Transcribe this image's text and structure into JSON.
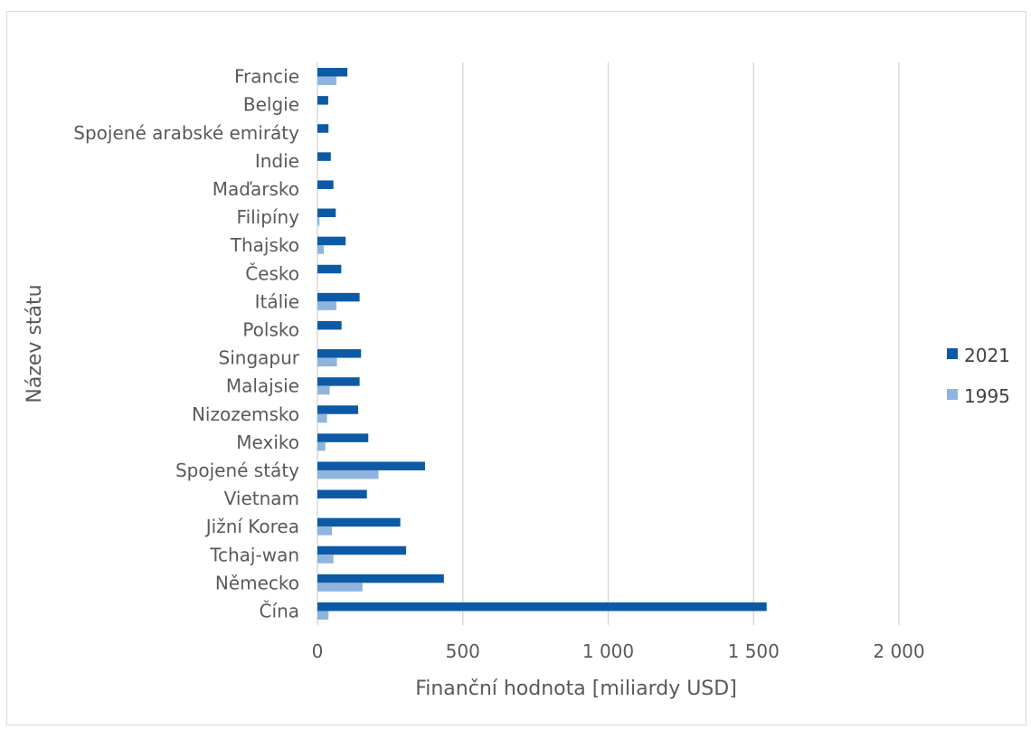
{
  "chart_data": {
    "type": "bar",
    "orientation": "horizontal",
    "title": "",
    "xlabel": "Finanční hodnota [miliardy USD]",
    "ylabel": "Název státu",
    "xlim": [
      0,
      2000
    ],
    "xticks": [
      0,
      500,
      1000,
      1500,
      2000
    ],
    "xtick_labels": [
      "0",
      "500",
      "1 000",
      "1 500",
      "2 000"
    ],
    "grid": "vertical",
    "legend": "right",
    "categories": [
      "Čína",
      "Německo",
      "Tchaj-wan",
      "Jižní Korea",
      "Vietnam",
      "Spojené státy",
      "Mexiko",
      "Nizozemsko",
      "Malajsie",
      "Singapur",
      "Polsko",
      "Itálie",
      "Česko",
      "Thajsko",
      "Filipíny",
      "Maďarsko",
      "Indie",
      "Spojené arabské emiráty",
      "Belgie",
      "Francie"
    ],
    "series": [
      {
        "name": "2021",
        "color": "#0c5aa6",
        "values": [
          1545,
          435,
          305,
          285,
          170,
          370,
          175,
          140,
          145,
          150,
          83,
          145,
          82,
          97,
          63,
          55,
          46,
          38,
          37,
          103
        ]
      },
      {
        "name": "1995",
        "color": "#8fb4de",
        "values": [
          38,
          155,
          55,
          50,
          0,
          210,
          27,
          33,
          42,
          67,
          0,
          65,
          0,
          22,
          7,
          0,
          0,
          0,
          0,
          65
        ]
      }
    ]
  }
}
